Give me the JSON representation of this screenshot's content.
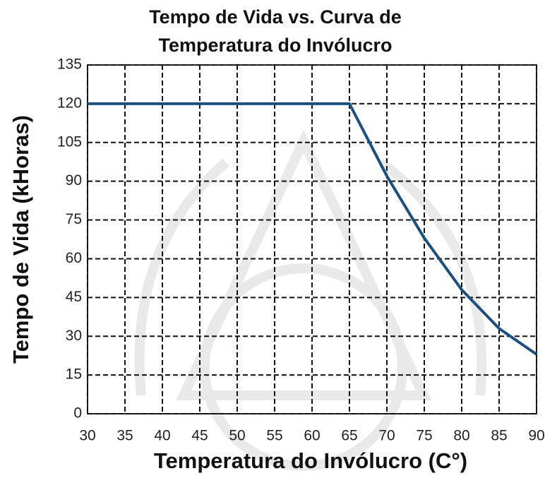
{
  "chart_data": {
    "type": "line",
    "title": "Tempo de Vida vs. Curva de Temperatura do Invólucro",
    "x_label": "Temperatura do Invólucro (C°)",
    "y_label": "Tempo de Vida (kHoras)",
    "x": [
      30,
      35,
      40,
      45,
      50,
      55,
      60,
      65,
      70,
      75,
      80,
      85,
      90
    ],
    "values": [
      120,
      120,
      120,
      120,
      120,
      120,
      120,
      120,
      92,
      68,
      48,
      33,
      23
    ],
    "color": "#1b4f7e",
    "xlim": [
      30,
      90
    ],
    "xticks": [
      30,
      35,
      40,
      45,
      50,
      55,
      60,
      65,
      70,
      75,
      80,
      85,
      90
    ],
    "ylim": [
      0,
      135
    ],
    "yticks": [
      0,
      15,
      30,
      45,
      60,
      75,
      90,
      105,
      120,
      135
    ],
    "grid": true
  }
}
